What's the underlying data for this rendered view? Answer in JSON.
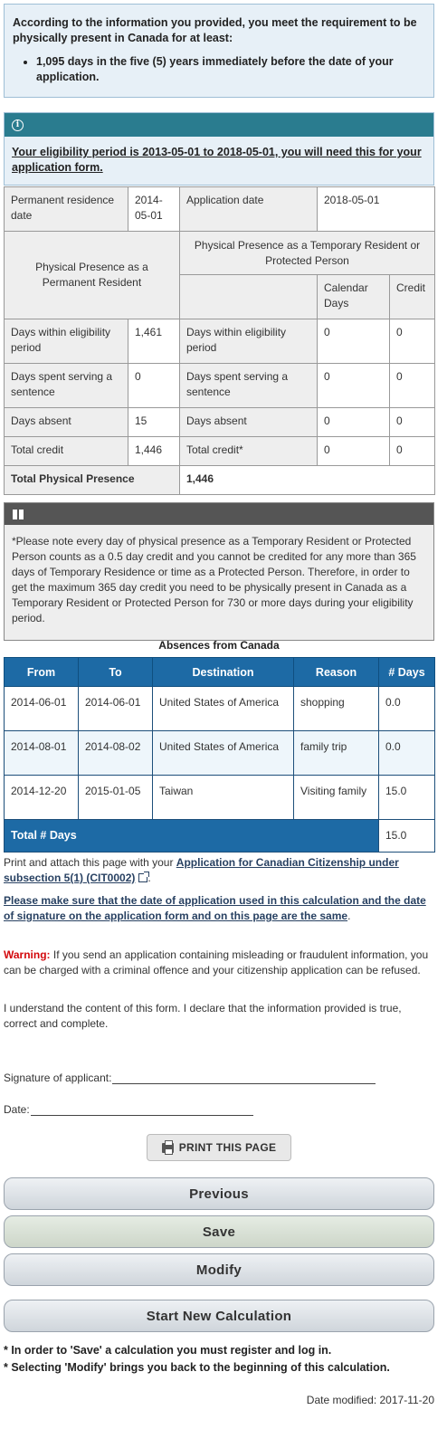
{
  "requirement": {
    "lead": "According to the information you provided, you meet the requirement to be physically present in Canada for at least:",
    "bullet": "1,095 days in the five (5) years immediately before the date of your application."
  },
  "eligibility": {
    "text": "Your eligibility period is 2013-05-01 to 2018-05-01, you will need this for your application form."
  },
  "presence": {
    "pr_date_label": "Permanent residence date",
    "pr_date_value": "2014-05-01",
    "app_date_label": "Application date",
    "app_date_value": "2018-05-01",
    "pr_header": "Physical Presence as a Permanent Resident",
    "tr_header": "Physical Presence as a Temporary Resident or Protected Person",
    "calendar_days_header": "Calendar Days",
    "credit_header": "Credit",
    "rows": [
      {
        "pr_label": "Days within eligibility period",
        "pr_value": "1,461",
        "tr_label": "Days within eligibility period",
        "tr_days": "0",
        "tr_credit": "0"
      },
      {
        "pr_label": "Days spent serving a sentence",
        "pr_value": "0",
        "tr_label": "Days spent serving a sentence",
        "tr_days": "0",
        "tr_credit": "0"
      },
      {
        "pr_label": "Days absent",
        "pr_value": "15",
        "tr_label": "Days absent",
        "tr_days": "0",
        "tr_credit": "0"
      },
      {
        "pr_label": "Total credit",
        "pr_value": "1,446",
        "tr_label": "Total credit*",
        "tr_days": "0",
        "tr_credit": "0"
      }
    ],
    "total_label": "Total Physical Presence",
    "total_value": "1,446"
  },
  "note": {
    "text": "*Please note every day of physical presence as a Temporary Resident or Protected Person counts as a 0.5 day credit and you cannot be credited for any more than 365 days of Temporary Residence or time as a Protected Person. Therefore, in order to get the maximum 365 day credit you need to be physically present in Canada as a Temporary Resident or Protected Person for 730 or more days during your eligibility period."
  },
  "absences": {
    "caption": "Absences from Canada",
    "headers": [
      "From",
      "To",
      "Destination",
      "Reason",
      "# Days"
    ],
    "rows": [
      {
        "from": "2014-06-01",
        "to": "2014-06-01",
        "destination": "United States of America",
        "reason": "shopping",
        "days": "0.0"
      },
      {
        "from": "2014-08-01",
        "to": "2014-08-02",
        "destination": "United States of America",
        "reason": "family trip",
        "days": "0.0"
      },
      {
        "from": "2014-12-20",
        "to": "2015-01-05",
        "destination": "Taiwan",
        "reason": "Visiting family",
        "days": "15.0"
      }
    ],
    "total_label": "Total # Days",
    "total_value": "15.0"
  },
  "instructions": {
    "print_prefix": "Print and attach this page with your ",
    "application_link": "Application for Canadian Citizenship under subsection 5(1) (CIT0002)",
    "print_suffix": ".",
    "same_date_link": "Please make sure that the date of application used in this calculation and the date of signature on the application form and on this page are the same",
    "same_date_suffix": ".",
    "warning_label": "Warning:",
    "warning_text": " If you send an application containing misleading or fraudulent information, you can be charged with a criminal offence and your citizenship application can be refused.",
    "declaration": "I understand the content of this form. I declare that the information provided is true, correct and complete.",
    "signature_label": "Signature of applicant:",
    "date_label": "Date:"
  },
  "buttons": {
    "print": "PRINT THIS PAGE",
    "previous": "Previous",
    "save": "Save",
    "modify": "Modify",
    "start_new": "Start New Calculation"
  },
  "footnotes": {
    "save_note": "* In order to 'Save' a calculation you must register and log in.",
    "modify_note": "* Selecting 'Modify' brings you back to the beginning of this calculation."
  },
  "footer": {
    "date_modified_label": "Date modified:",
    "date_modified_value": "2017-11-20"
  },
  "colors": {
    "table_header_blue": "#1d6aa5",
    "info_header_teal": "#2a7c8f",
    "note_header_gray": "#555555",
    "warning_red": "#d3080c",
    "link_navy": "#284162"
  }
}
